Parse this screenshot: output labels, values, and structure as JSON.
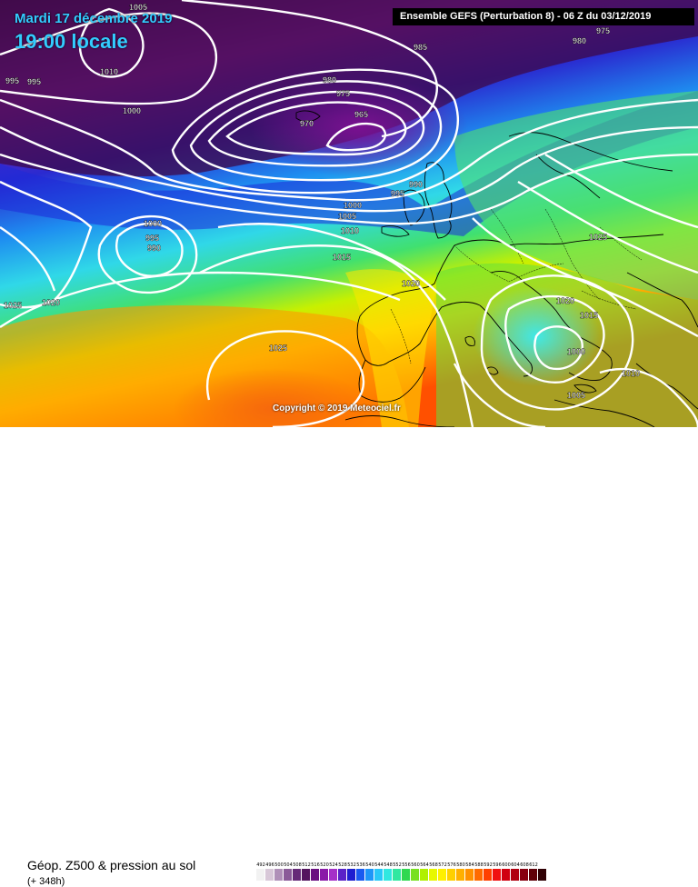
{
  "header": {
    "date_title": "Mardi 17 décembre 2019",
    "time_title": "19:00 locale",
    "run_info": "Ensemble GEFS  (Perturbation 8)  - 06 Z du 03/12/2019"
  },
  "map": {
    "copyright": "Copyright © 2019 Meteociel.fr",
    "isobar_labels": [
      {
        "id": "1005-a",
        "text": "1005"
      },
      {
        "id": "1010-a",
        "text": "1010"
      },
      {
        "id": "995-a",
        "text": "995"
      },
      {
        "id": "995-b",
        "text": "995"
      },
      {
        "id": "1000-a",
        "text": "1000"
      },
      {
        "id": "985-a",
        "text": "985"
      },
      {
        "id": "980-a",
        "text": "980"
      },
      {
        "id": "975-a",
        "text": "975"
      },
      {
        "id": "970-a",
        "text": "970"
      },
      {
        "id": "965-a",
        "text": "965"
      },
      {
        "id": "980-b",
        "text": "980"
      },
      {
        "id": "975-b",
        "text": "975"
      },
      {
        "id": "990-a",
        "text": "990"
      },
      {
        "id": "995-c",
        "text": "995"
      },
      {
        "id": "1000-b",
        "text": "1000"
      },
      {
        "id": "1005-b",
        "text": "1005"
      },
      {
        "id": "1010-b",
        "text": "1010"
      },
      {
        "id": "1000-c",
        "text": "1000"
      },
      {
        "id": "995-d",
        "text": "995"
      },
      {
        "id": "990-b",
        "text": "990"
      },
      {
        "id": "1015-a",
        "text": "1015"
      },
      {
        "id": "1020-a",
        "text": "1020"
      },
      {
        "id": "1020-b",
        "text": "1020"
      },
      {
        "id": "1025-a",
        "text": "1025"
      },
      {
        "id": "1025-b",
        "text": "1025"
      },
      {
        "id": "1025-c",
        "text": "1025"
      },
      {
        "id": "1020-c",
        "text": "1020"
      },
      {
        "id": "1015-b",
        "text": "1015"
      },
      {
        "id": "1000-d",
        "text": "1000"
      },
      {
        "id": "1010-c",
        "text": "1010"
      },
      {
        "id": "1005-c",
        "text": "1005"
      }
    ]
  },
  "legend": {
    "product": "Géop. Z500 & pression au sol",
    "lead": "(+ 348h)",
    "scale": [
      {
        "label": "492",
        "color": "#f2f2f2"
      },
      {
        "label": "496",
        "color": "#d8c8d8"
      },
      {
        "label": "500",
        "color": "#b090b8"
      },
      {
        "label": "504",
        "color": "#8a5a98"
      },
      {
        "label": "508",
        "color": "#662a78"
      },
      {
        "label": "512",
        "color": "#54145e"
      },
      {
        "label": "516",
        "color": "#6a0f80"
      },
      {
        "label": "520",
        "color": "#8a1aa8"
      },
      {
        "label": "524",
        "color": "#a530c8"
      },
      {
        "label": "528",
        "color": "#5a22c8"
      },
      {
        "label": "532",
        "color": "#1e1ed0"
      },
      {
        "label": "536",
        "color": "#1a5af0"
      },
      {
        "label": "540",
        "color": "#1e96f8"
      },
      {
        "label": "544",
        "color": "#28c8f8"
      },
      {
        "label": "548",
        "color": "#30e8e0"
      },
      {
        "label": "552",
        "color": "#30e8a0"
      },
      {
        "label": "556",
        "color": "#30d850"
      },
      {
        "label": "560",
        "color": "#78e020"
      },
      {
        "label": "564",
        "color": "#b0f000"
      },
      {
        "label": "568",
        "color": "#e8f800"
      },
      {
        "label": "572",
        "color": "#fff000"
      },
      {
        "label": "576",
        "color": "#ffd000"
      },
      {
        "label": "580",
        "color": "#ffb000"
      },
      {
        "label": "584",
        "color": "#ff9000"
      },
      {
        "label": "588",
        "color": "#ff6a00"
      },
      {
        "label": "592",
        "color": "#ff4000"
      },
      {
        "label": "596",
        "color": "#f01010"
      },
      {
        "label": "600",
        "color": "#d00010"
      },
      {
        "label": "604",
        "color": "#b00010"
      },
      {
        "label": "608",
        "color": "#880010"
      },
      {
        "label": "612",
        "color": "#600008"
      },
      {
        "label": "",
        "color": "#300004"
      }
    ]
  }
}
